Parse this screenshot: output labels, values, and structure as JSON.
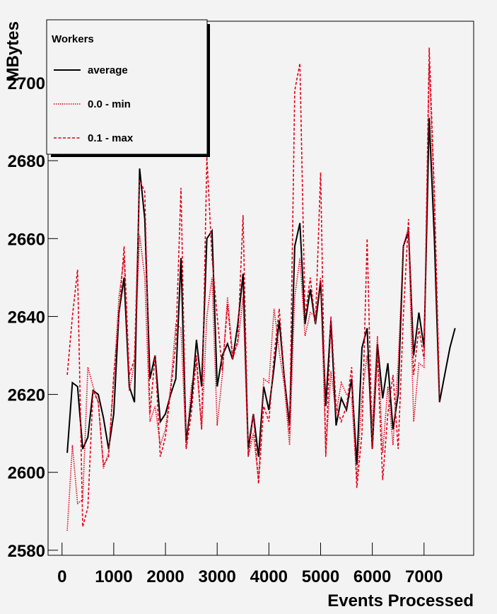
{
  "chart_data": {
    "type": "line",
    "y_label": "MBytes",
    "x_label": "Events Processed",
    "legend_title": "Workers",
    "legend": "top-left",
    "xlim": [
      -270,
      7960
    ],
    "ylim": [
      2578.7,
      2715.8
    ],
    "xticks": [
      0,
      1000,
      2000,
      3000,
      4000,
      5000,
      6000,
      7000
    ],
    "yticks": [
      2580,
      2600,
      2620,
      2640,
      2660,
      2680,
      2700
    ],
    "x": [
      100,
      200,
      300,
      400,
      500,
      600,
      700,
      800,
      900,
      1000,
      1100,
      1200,
      1300,
      1400,
      1500,
      1600,
      1700,
      1800,
      1900,
      2000,
      2100,
      2200,
      2300,
      2400,
      2500,
      2600,
      2700,
      2800,
      2900,
      3000,
      3100,
      3200,
      3300,
      3400,
      3500,
      3600,
      3700,
      3800,
      3900,
      4000,
      4100,
      4200,
      4300,
      4400,
      4500,
      4600,
      4700,
      4800,
      4900,
      5000,
      5100,
      5200,
      5300,
      5400,
      5500,
      5600,
      5700,
      5800,
      5900,
      6000,
      6100,
      6200,
      6300,
      6400,
      6500,
      6600,
      6700,
      6800,
      6900,
      7000,
      7100,
      7200,
      7300,
      7400,
      7500,
      7600
    ],
    "series": [
      {
        "name": "average",
        "color": "#000000",
        "dash": "solid",
        "values": [
          2605,
          2623,
          2622,
          2606,
          2609,
          2621,
          2620,
          2614,
          2606,
          2615,
          2641,
          2650,
          2622,
          2618,
          2678,
          2665,
          2624,
          2630,
          2613,
          2615,
          2620,
          2624,
          2655,
          2608,
          2618,
          2634,
          2622,
          2660,
          2662,
          2622,
          2630,
          2633,
          2629,
          2638,
          2651,
          2606,
          2615,
          2604,
          2622,
          2616,
          2627,
          2639,
          2624,
          2612,
          2658,
          2664,
          2638,
          2647,
          2638,
          2649,
          2617,
          2639,
          2612,
          2619,
          2616,
          2624,
          2602,
          2632,
          2637,
          2606,
          2633,
          2619,
          2628,
          2611,
          2620,
          2658,
          2662,
          2630,
          2641,
          2632,
          2691,
          2660,
          2618,
          2625,
          2632,
          2637
        ]
      },
      {
        "name": "0.0 - min",
        "color": "#e0001a",
        "dash": "dotted",
        "values": [
          2585,
          2607,
          2592,
          2593,
          2627,
          2622,
          2618,
          2601,
          2605,
          2623,
          2645,
          2655,
          2621,
          2628,
          2661,
          2650,
          2613,
          2617,
          2607,
          2611,
          2622,
          2638,
          2637,
          2606,
          2622,
          2628,
          2611,
          2640,
          2650,
          2612,
          2625,
          2645,
          2630,
          2633,
          2645,
          2604,
          2610,
          2598,
          2624,
          2623,
          2642,
          2631,
          2622,
          2607,
          2645,
          2655,
          2635,
          2641,
          2640,
          2650,
          2605,
          2626,
          2615,
          2623,
          2620,
          2619,
          2598,
          2620,
          2630,
          2612,
          2635,
          2605,
          2622,
          2607,
          2628,
          2658,
          2663,
          2613,
          2628,
          2627,
          2705,
          2668,
          2618,
          null,
          null,
          null
        ]
      },
      {
        "name": "0.1 - max",
        "color": "#e0001a",
        "dash": "dashed",
        "values": [
          2625,
          2640,
          2652,
          2586,
          2591,
          2621,
          2618,
          2602,
          2604,
          2625,
          2640,
          2658,
          2625,
          2629,
          2675,
          2672,
          2615,
          2630,
          2604,
          2609,
          2621,
          2633,
          2673,
          2606,
          2615,
          2630,
          2611,
          2681,
          2655,
          2640,
          2626,
          2643,
          2629,
          2634,
          2666,
          2604,
          2615,
          2597,
          2617,
          2613,
          2630,
          2642,
          2624,
          2610,
          2698,
          2705,
          2640,
          2650,
          2638,
          2677,
          2604,
          2640,
          2617,
          2613,
          2617,
          2627,
          2596,
          2610,
          2660,
          2606,
          2630,
          2598,
          2615,
          2625,
          2606,
          2640,
          2665,
          2625,
          2637,
          2629,
          2709,
          2672,
          2620,
          null,
          null,
          null
        ]
      }
    ]
  }
}
